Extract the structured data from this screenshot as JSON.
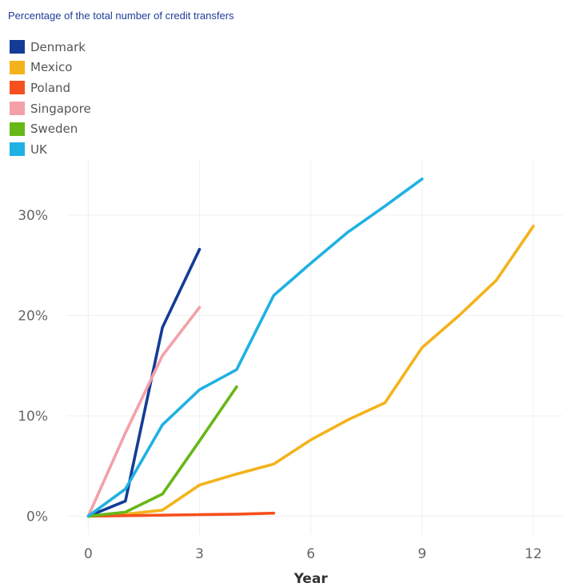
{
  "chart_data": {
    "type": "line",
    "subtitle": "Percentage of the total number of credit transfers",
    "xlabel": "Year",
    "ylabel": "",
    "xlim": [
      -1,
      12.8
    ],
    "ylim": [
      -1.8,
      35.5
    ],
    "x_ticks": [
      0,
      3,
      6,
      9,
      12
    ],
    "y_ticks": [
      0,
      10,
      20,
      30
    ],
    "y_tick_labels": [
      "0%",
      "10%",
      "20%",
      "30%"
    ],
    "legend_position": "top-left",
    "grid": true,
    "series": [
      {
        "name": "Denmark",
        "color": "#143c96",
        "x": [
          0,
          1,
          2,
          3
        ],
        "y": [
          0,
          1.5,
          18.8,
          26.6
        ]
      },
      {
        "name": "Mexico",
        "color": "#f3b31b",
        "x": [
          0,
          1,
          2,
          3,
          4,
          5,
          6,
          7,
          8,
          9,
          10,
          11,
          12
        ],
        "y": [
          0,
          0.2,
          0.6,
          3.1,
          4.2,
          5.2,
          7.6,
          9.6,
          11.3,
          16.8,
          20.0,
          23.5,
          28.9
        ]
      },
      {
        "name": "Poland",
        "color": "#f6501e",
        "x": [
          0,
          1,
          2,
          3,
          4,
          5
        ],
        "y": [
          0,
          0.05,
          0.1,
          0.15,
          0.2,
          0.3
        ]
      },
      {
        "name": "Singapore",
        "color": "#f4a0a8",
        "x": [
          0,
          1,
          2,
          3
        ],
        "y": [
          0,
          8.3,
          16.0,
          20.8
        ]
      },
      {
        "name": "Sweden",
        "color": "#67b717",
        "x": [
          0,
          1,
          2,
          3,
          4
        ],
        "y": [
          0,
          0.4,
          2.2,
          7.5,
          12.9
        ]
      },
      {
        "name": "UK",
        "color": "#1fb1e3",
        "x": [
          0,
          1,
          2,
          3,
          4,
          5,
          6,
          7,
          8,
          9
        ],
        "y": [
          0,
          2.7,
          9.1,
          12.6,
          14.6,
          22.0,
          25.2,
          28.3,
          30.9,
          33.6
        ]
      }
    ]
  }
}
